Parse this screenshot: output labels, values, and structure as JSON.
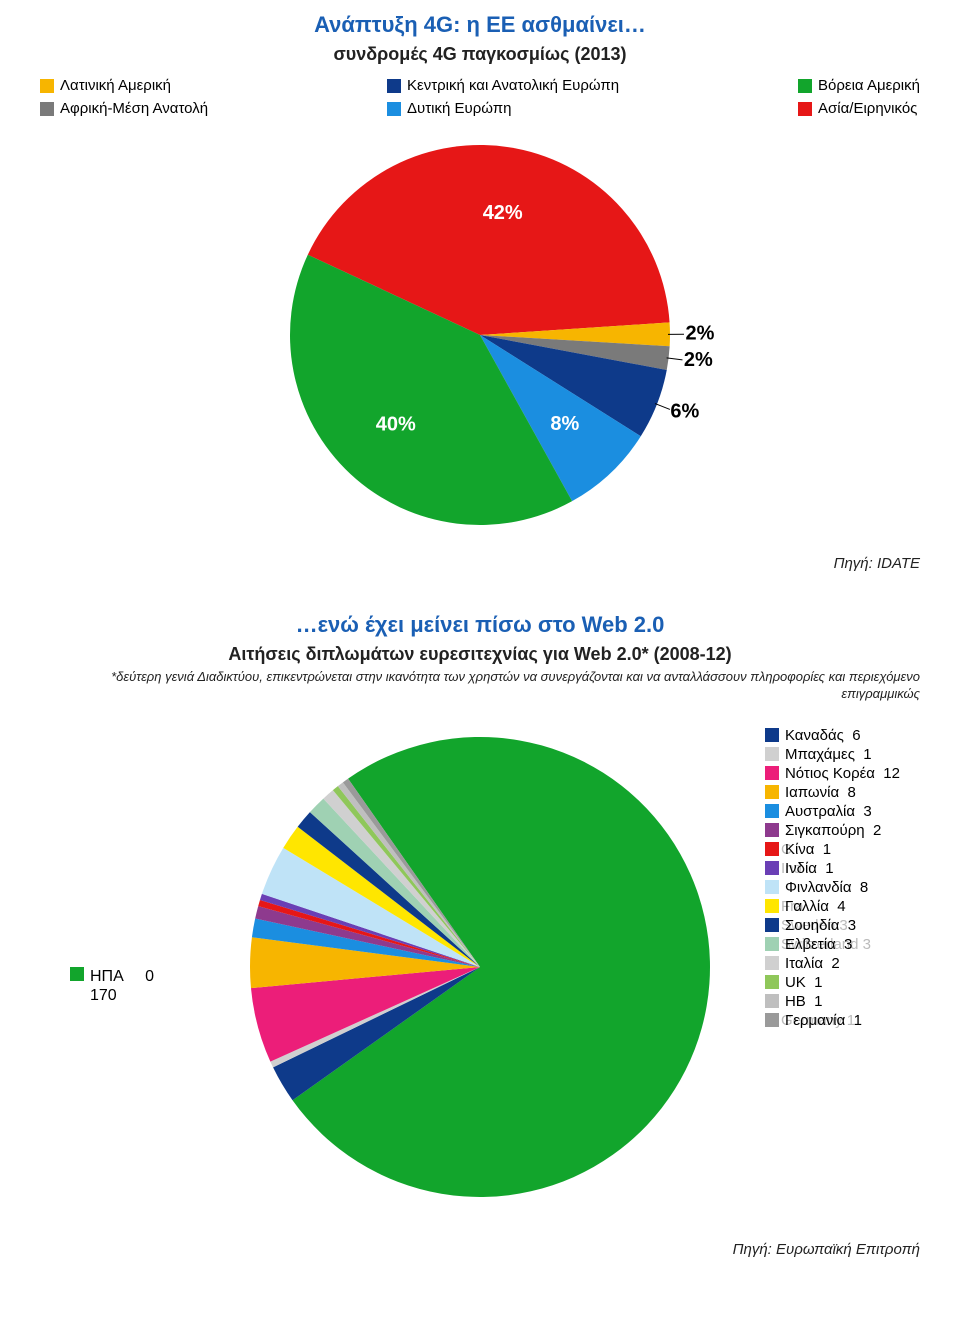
{
  "chart1": {
    "title": "Ανάπτυξη 4G: η ΕΕ ασθμαίνει…",
    "subtitle": "συνδρομές 4G παγκοσμίως (2013)",
    "title_color": "#1a5fb4",
    "title_fontsize": 22,
    "subtitle_fontsize": 18,
    "legend_fontsize": 15,
    "legend": [
      {
        "label": "Λατινική Αμερική",
        "color": "#f7b500"
      },
      {
        "label": "Αφρική-Μέση Ανατολή",
        "color": "#7a7a7a"
      },
      {
        "label": "Κεντρική και Ανατολική Ευρώπη",
        "color": "#0e3a8a"
      },
      {
        "label": "Δυτική Ευρώπη",
        "color": "#1b8ee0"
      },
      {
        "label": "Βόρεια Αμερική",
        "color": "#12a52c"
      },
      {
        "label": "Ασία/Ειρηνικός",
        "color": "#e61717"
      }
    ],
    "pie": {
      "type": "pie",
      "background": "#ffffff",
      "radius": 190,
      "label_fontsize": 20,
      "label_color": "#000000",
      "label_fontweight": "bold",
      "slices": [
        {
          "label": "42%",
          "value": 42,
          "color": "#e61717"
        },
        {
          "label": "2%",
          "value": 2,
          "color": "#f7b500"
        },
        {
          "label": "2%",
          "value": 2,
          "color": "#7a7a7a"
        },
        {
          "label": "6%",
          "value": 6,
          "color": "#0e3a8a"
        },
        {
          "label": "8%",
          "value": 8,
          "color": "#1b8ee0"
        },
        {
          "label": "40%",
          "value": 40,
          "color": "#12a52c"
        }
      ],
      "start_angle_deg": -155
    },
    "source": "Πηγή: IDATE"
  },
  "chart2": {
    "title": "…ενώ έχει μείνει πίσω στο Web 2.0",
    "subtitle": "Αιτήσεις διπλωμάτων ευρεσιτεχνίας για Web 2.0* (2008-12)",
    "footnote": "*δεύτερη γενιά Διαδικτύου, επικεντρώνεται στην ικανότητα των χρηστών να συνεργάζονται και να ανταλλάσσουν πληροφορίες και περιεχόμενο επιγραμμικώς",
    "title_color": "#1a5fb4",
    "title_fontsize": 22,
    "subtitle_fontsize": 18,
    "footnote_fontsize": 13,
    "pie": {
      "type": "pie",
      "background": "#ffffff",
      "radius": 230,
      "start_angle_deg": -125,
      "slices": [
        {
          "label": "ΗΠΑ",
          "value": 170,
          "color": "#12a52c",
          "value_text": "170",
          "extra_zero": "0"
        },
        {
          "label": "Καναδάς",
          "value": 6,
          "color": "#0e3a8a",
          "value_text": "6"
        },
        {
          "label": "Μπαχάμες",
          "value": 1,
          "color": "#d0d0d0",
          "value_text": "1"
        },
        {
          "label": "Νότιος Κορέα",
          "value": 12,
          "color": "#ec1e79",
          "value_text": "12"
        },
        {
          "label": "Ιαπωνία",
          "value": 8,
          "color": "#f7b500",
          "value_text": "8"
        },
        {
          "label": "Αυστραλία",
          "value": 3,
          "color": "#1b8ee0",
          "value_text": "3"
        },
        {
          "label": "Σιγκαπούρη",
          "value": 2,
          "color": "#8e3a8e",
          "value_text": "2"
        },
        {
          "label": "Κίνα",
          "value": 1,
          "color": "#e61717",
          "value_text": "1",
          "ghost": "C"
        },
        {
          "label": "Ινδία",
          "value": 1,
          "color": "#6a3fb5",
          "value_text": "1",
          "ghost": "Ind"
        },
        {
          "label": "Φινλανδία",
          "value": 8,
          "color": "#bfe3f7",
          "value_text": "8"
        },
        {
          "label": "Γαλλία",
          "value": 4,
          "color": "#ffe600",
          "value_text": "4",
          "ghost": "Fra"
        },
        {
          "label": "Σουηδία",
          "value": 3,
          "color": "#0e3a8a",
          "value_text": "3",
          "ghost": "Sweden 3"
        },
        {
          "label": "Ελβετία",
          "value": 3,
          "color": "#9fd1b3",
          "value_text": "3",
          "ghost": "Switzerland 3"
        },
        {
          "label": "Ιταλία",
          "value": 2,
          "color": "#d0d0d0",
          "value_text": "2"
        },
        {
          "label": "UK",
          "value": 1,
          "color": "#8fc75a",
          "value_text": "1"
        },
        {
          "label": "HB",
          "value": 1,
          "color": "#bfbfbf",
          "value_text": "1"
        },
        {
          "label": "Γερμανία",
          "value": 1,
          "color": "#9a9a9a",
          "value_text": "1",
          "ghost": "Germany 1"
        }
      ]
    },
    "source": "Πηγή: Ευρωπαϊκή Επιτροπή"
  }
}
